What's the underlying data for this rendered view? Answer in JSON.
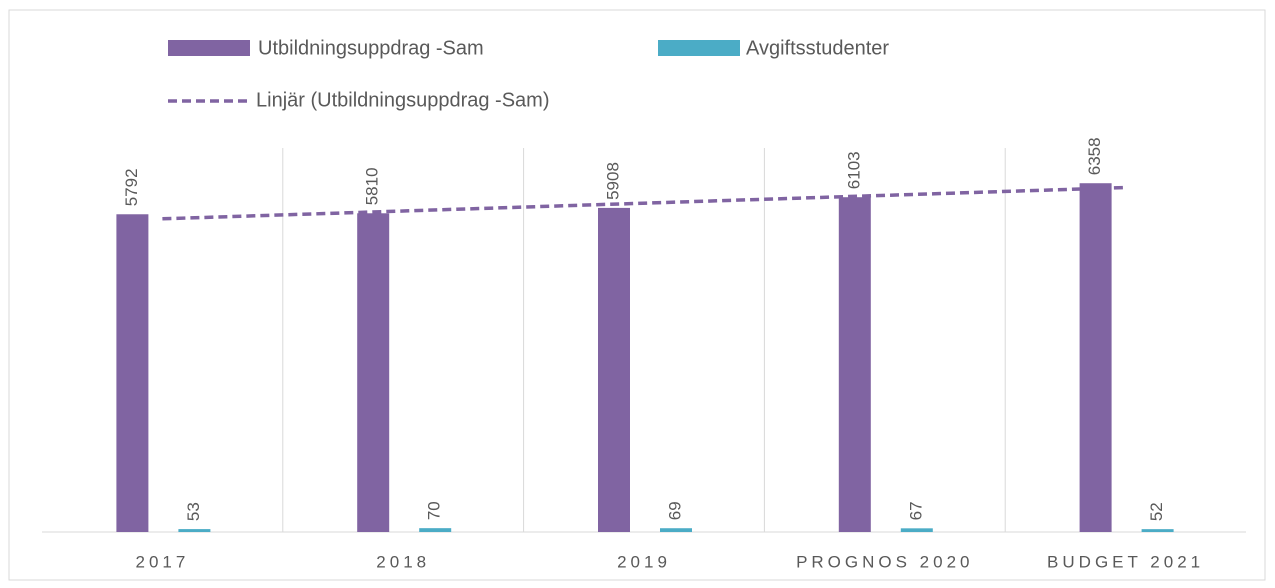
{
  "chart_data": {
    "type": "bar",
    "categories": [
      "2017",
      "2018",
      "2019",
      "PROGNOS 2020",
      "BUDGET 2021"
    ],
    "series": [
      {
        "name": "Utbildningsuppdrag -Sam",
        "color": "#8064a2",
        "values": [
          5792,
          5810,
          5908,
          6103,
          6358
        ]
      },
      {
        "name": "Avgiftsstudenter",
        "color": "#4bacc6",
        "values": [
          53,
          70,
          69,
          67,
          52
        ]
      }
    ],
    "trendline": {
      "name": "Linjär (Utbildningsuppdrag -Sam)",
      "kind": "linear",
      "color": "#8064a2"
    },
    "ylim": [
      0,
      7000
    ],
    "grid": true
  }
}
